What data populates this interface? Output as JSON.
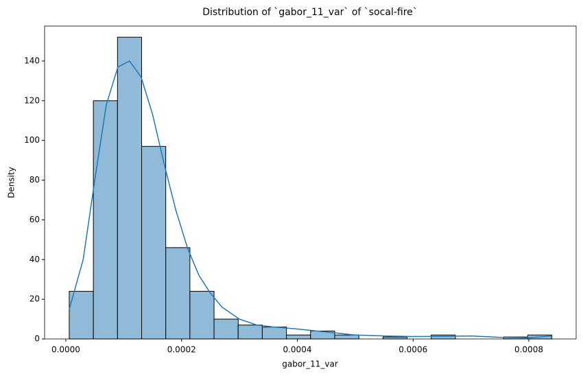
{
  "chart_data": {
    "type": "histogram",
    "title": "Distribution of `gabor_11_var` of `socal-fire`",
    "xlabel": "gabor_11_var",
    "ylabel": "Density",
    "bins": [
      5.9e-06,
      4.76e-05,
      8.93e-05,
      0.000131,
      0.0001727,
      0.0002144,
      0.0002561,
      0.0002978,
      0.0003395,
      0.0003812,
      0.0004229,
      0.0004646,
      0.0005063,
      0.000548,
      0.0005897,
      0.0006314,
      0.0006731,
      0.0007148,
      0.0007565,
      0.0007982,
      0.0008399
    ],
    "counts": [
      24,
      120,
      152,
      97,
      46,
      24,
      10,
      7,
      6,
      2,
      4,
      2,
      0,
      1,
      0,
      2,
      0,
      0,
      1,
      2
    ],
    "color": "#8fbbd9",
    "edgecolor": "#000000",
    "kde": {
      "color": "#1f77b4",
      "x": [
        6e-06,
        3e-05,
        5e-05,
        7e-05,
        9e-05,
        0.00011,
        0.00013,
        0.00015,
        0.00017,
        0.00019,
        0.00021,
        0.00023,
        0.00025,
        0.00027,
        0.0003,
        0.00033,
        0.00036,
        0.0004,
        0.00045,
        0.0005,
        0.00055,
        0.0006,
        0.00065,
        0.0007,
        0.00075,
        0.0008,
        0.00084
      ],
      "y": [
        15,
        40,
        80,
        118,
        137,
        140,
        132,
        113,
        88,
        65,
        46,
        32,
        23,
        16,
        10,
        7,
        6,
        5,
        3.5,
        2,
        1.5,
        1.2,
        1.3,
        1.5,
        0.8,
        0.6,
        1.5
      ]
    },
    "xlim": [
      -3.67e-05,
      0.0008818
    ],
    "ylim": [
      0,
      157.6
    ],
    "xticks": [
      {
        "value": 0,
        "label": "0.0000"
      },
      {
        "value": 0.0002,
        "label": "0.0002"
      },
      {
        "value": 0.0004,
        "label": "0.0004"
      },
      {
        "value": 0.0006,
        "label": "0.0006"
      },
      {
        "value": 0.0008,
        "label": "0.0008"
      }
    ],
    "yticks": [
      0,
      20,
      40,
      60,
      80,
      100,
      120,
      140
    ]
  }
}
